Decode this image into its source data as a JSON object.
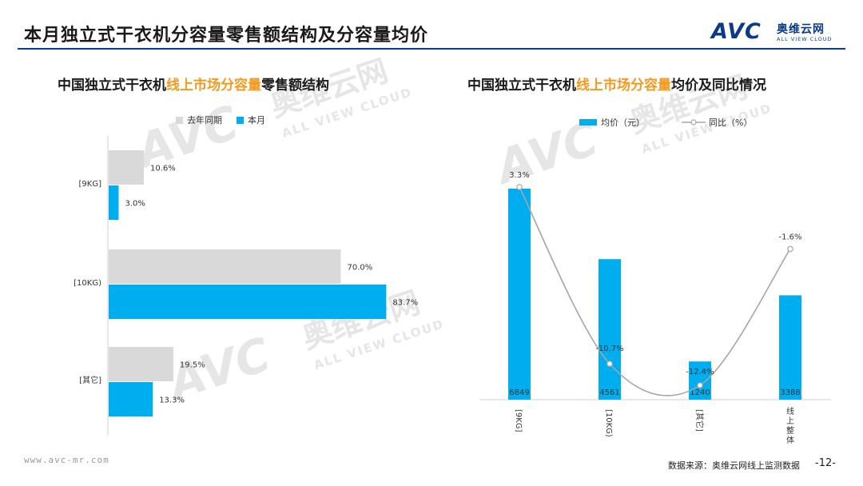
{
  "page": {
    "title": "本月独立式干衣机分容量零售额结构及分容量均价",
    "logo_mark": "AVC",
    "logo_cn": "奥维云网",
    "logo_en": "ALL VIEW CLOUD",
    "watermark_mark": "AVC",
    "watermark_cn": "奥维云网",
    "watermark_en": "ALL VIEW CLOUD",
    "footer_url": "www.avc-mr.com",
    "footer_source": "数据来源：奥维云网线上监测数据",
    "page_number": "-12-",
    "colors": {
      "accent_blue": "#00aeef",
      "gray_bar": "#d9d9d9",
      "highlight": "#f39a1e",
      "brand": "#0a3b8a"
    }
  },
  "chart_data": [
    {
      "type": "bar",
      "orientation": "horizontal",
      "title_parts": [
        "中国独立式干衣机",
        "线上市场分容量",
        "零售额结构"
      ],
      "categories": [
        "[9KG]",
        "[10KG)",
        "[其它]"
      ],
      "series": [
        {
          "name": "去年同期",
          "values": [
            10.6,
            70.0,
            19.5
          ],
          "labels": [
            "10.6%",
            "70.0%",
            "19.5%"
          ],
          "color": "#d9d9d9"
        },
        {
          "name": "本月",
          "values": [
            3.0,
            83.7,
            13.3
          ],
          "labels": [
            "3.0%",
            "83.7%",
            "13.3%"
          ],
          "color": "#00aeef"
        }
      ],
      "xlim": [
        0,
        100
      ],
      "legend": "top"
    },
    {
      "type": "bar+line",
      "title_parts": [
        "中国独立式干衣机",
        "线上市场分容量",
        "均价及同比情况"
      ],
      "categories": [
        "[9KG]",
        "[10KG)",
        "[其它]",
        "线上整体"
      ],
      "bar_series": {
        "name": "均价（元）",
        "values": [
          6849,
          4561,
          1240,
          3388
        ],
        "labels": [
          "6849",
          "4561",
          "1240",
          "3388"
        ],
        "color": "#00aeef"
      },
      "line_series": {
        "name": "同比（%）",
        "values": [
          3.3,
          -10.7,
          -12.4,
          -1.6
        ],
        "labels": [
          "3.3%",
          "-10.7%",
          "-12.4%",
          "-1.6%"
        ],
        "color": "#a6a6a6"
      },
      "legend": "top"
    }
  ]
}
